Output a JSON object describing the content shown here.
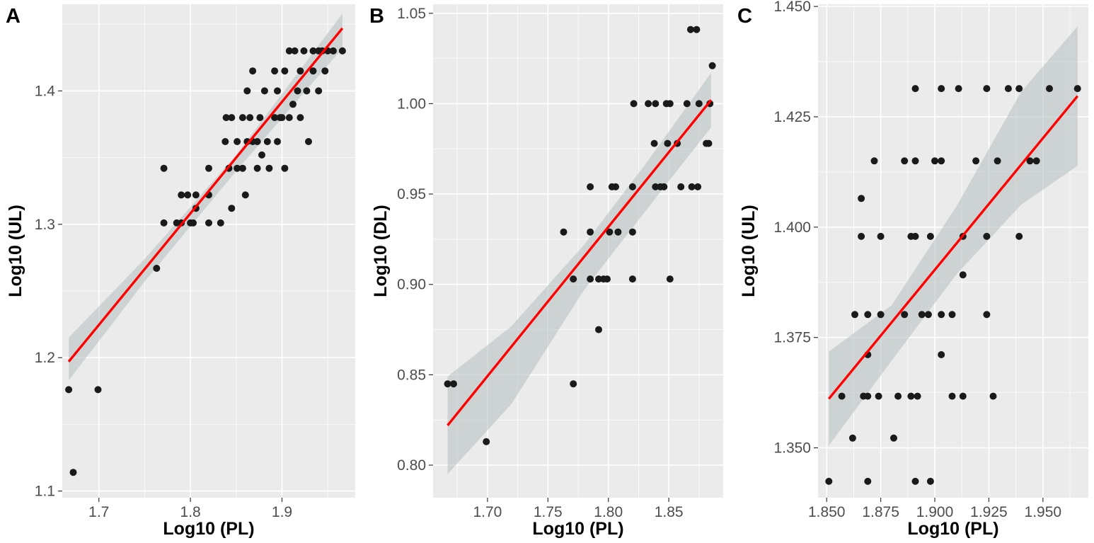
{
  "colors": {
    "panel_background": "#ebebeb",
    "gridline": "#ffffff",
    "points": "#1a1a1a",
    "fit_line": "#ff0000",
    "confidence_band": "#b5bdbd"
  },
  "chart_data": [
    {
      "panel_label": "A",
      "type": "scatter",
      "xlabel": "Log10 (PL)",
      "ylabel": "Log10 (UL)",
      "xlim": [
        1.66,
        1.98
      ],
      "ylim": [
        1.095,
        1.465
      ],
      "xticks": [
        "1.7",
        "1.8",
        "1.9"
      ],
      "yticks": [
        "1.1",
        "1.2",
        "1.3",
        "1.4"
      ],
      "grid": true,
      "fit": {
        "x": [
          1.667,
          1.966
        ],
        "y": [
          1.197,
          1.447
        ]
      },
      "band": {
        "x": [
          1.667,
          1.75,
          1.85,
          1.966
        ],
        "upper": [
          1.215,
          1.274,
          1.352,
          1.458
        ],
        "lower": [
          1.183,
          1.257,
          1.34,
          1.432
        ]
      },
      "points": [
        [
          1.667,
          1.176
        ],
        [
          1.672,
          1.114
        ],
        [
          1.699,
          1.176
        ],
        [
          1.763,
          1.267
        ],
        [
          1.771,
          1.301
        ],
        [
          1.771,
          1.342
        ],
        [
          1.785,
          1.301
        ],
        [
          1.79,
          1.322
        ],
        [
          1.79,
          1.301
        ],
        [
          1.797,
          1.322
        ],
        [
          1.8,
          1.301
        ],
        [
          1.803,
          1.301
        ],
        [
          1.806,
          1.312
        ],
        [
          1.806,
          1.322
        ],
        [
          1.82,
          1.342
        ],
        [
          1.82,
          1.301
        ],
        [
          1.82,
          1.322
        ],
        [
          1.833,
          1.301
        ],
        [
          1.839,
          1.38
        ],
        [
          1.842,
          1.342
        ],
        [
          1.845,
          1.312
        ],
        [
          1.851,
          1.342
        ],
        [
          1.851,
          1.362
        ],
        [
          1.857,
          1.342
        ],
        [
          1.857,
          1.38
        ],
        [
          1.86,
          1.322
        ],
        [
          1.862,
          1.362
        ],
        [
          1.865,
          1.38
        ],
        [
          1.868,
          1.415
        ],
        [
          1.868,
          1.362
        ],
        [
          1.873,
          1.342
        ],
        [
          1.873,
          1.362
        ],
        [
          1.876,
          1.38
        ],
        [
          1.881,
          1.4
        ],
        [
          1.884,
          1.362
        ],
        [
          1.886,
          1.342
        ],
        [
          1.892,
          1.415
        ],
        [
          1.892,
          1.38
        ],
        [
          1.895,
          1.362
        ],
        [
          1.895,
          1.4
        ],
        [
          1.9,
          1.38
        ],
        [
          1.903,
          1.415
        ],
        [
          1.903,
          1.342
        ],
        [
          1.908,
          1.43
        ],
        [
          1.908,
          1.38
        ],
        [
          1.912,
          1.39
        ],
        [
          1.914,
          1.43
        ],
        [
          1.92,
          1.415
        ],
        [
          1.92,
          1.38
        ],
        [
          1.924,
          1.43
        ],
        [
          1.927,
          1.4
        ],
        [
          1.929,
          1.362
        ],
        [
          1.934,
          1.43
        ],
        [
          1.934,
          1.415
        ],
        [
          1.94,
          1.43
        ],
        [
          1.94,
          1.4
        ],
        [
          1.944,
          1.43
        ],
        [
          1.947,
          1.415
        ],
        [
          1.95,
          1.43
        ],
        [
          1.956,
          1.43
        ],
        [
          1.966,
          1.43
        ],
        [
          1.838,
          1.362
        ],
        [
          1.845,
          1.38
        ],
        [
          1.862,
          1.4
        ],
        [
          1.878,
          1.352
        ],
        [
          1.898,
          1.38
        ],
        [
          1.917,
          1.4
        ]
      ]
    },
    {
      "panel_label": "B",
      "type": "scatter",
      "xlabel": "Log10 (PL)",
      "ylabel": "Log10 (DL)",
      "xlim": [
        1.655,
        1.895
      ],
      "ylim": [
        0.782,
        1.055
      ],
      "xticks": [
        "1.70",
        "1.75",
        "1.80",
        "1.85"
      ],
      "yticks": [
        "0.80",
        "0.85",
        "0.90",
        "0.95",
        "1.00",
        "1.05"
      ],
      "grid": true,
      "fit": {
        "x": [
          1.667,
          1.885
        ],
        "y": [
          0.822,
          1.002
        ]
      },
      "band": {
        "x": [
          1.667,
          1.72,
          1.78,
          1.83,
          1.885
        ],
        "upper": [
          0.849,
          0.877,
          0.922,
          0.966,
          1.017
        ],
        "lower": [
          0.795,
          0.834,
          0.897,
          0.94,
          0.987
        ]
      },
      "points": [
        [
          1.667,
          0.845
        ],
        [
          1.672,
          0.845
        ],
        [
          1.699,
          0.813
        ],
        [
          1.763,
          0.929
        ],
        [
          1.771,
          0.845
        ],
        [
          1.771,
          0.903
        ],
        [
          1.785,
          0.954
        ],
        [
          1.785,
          0.929
        ],
        [
          1.785,
          0.903
        ],
        [
          1.792,
          0.875
        ],
        [
          1.792,
          0.903
        ],
        [
          1.796,
          0.903
        ],
        [
          1.799,
          0.903
        ],
        [
          1.801,
          0.929
        ],
        [
          1.803,
          0.954
        ],
        [
          1.806,
          0.954
        ],
        [
          1.808,
          0.929
        ],
        [
          1.82,
          0.954
        ],
        [
          1.82,
          0.929
        ],
        [
          1.82,
          0.903
        ],
        [
          1.821,
          1.0
        ],
        [
          1.833,
          1.0
        ],
        [
          1.838,
          0.978
        ],
        [
          1.839,
          0.954
        ],
        [
          1.839,
          1.0
        ],
        [
          1.843,
          0.954
        ],
        [
          1.846,
          0.954
        ],
        [
          1.848,
          1.0
        ],
        [
          1.849,
          0.978
        ],
        [
          1.851,
          0.903
        ],
        [
          1.851,
          1.0
        ],
        [
          1.857,
          0.978
        ],
        [
          1.86,
          0.954
        ],
        [
          1.865,
          1.0
        ],
        [
          1.868,
          1.041
        ],
        [
          1.869,
          0.954
        ],
        [
          1.873,
          1.041
        ],
        [
          1.874,
          0.954
        ],
        [
          1.875,
          1.0
        ],
        [
          1.881,
          0.978
        ],
        [
          1.883,
          0.978
        ],
        [
          1.884,
          1.0
        ],
        [
          1.886,
          1.021
        ]
      ]
    },
    {
      "panel_label": "C",
      "type": "scatter",
      "xlabel": "Log10 (PL)",
      "ylabel": "Log10 (UL)",
      "xlim": [
        1.846,
        1.971
      ],
      "ylim": [
        1.3387,
        1.4505
      ],
      "xticks": [
        "1.850",
        "1.875",
        "1.900",
        "1.925",
        "1.950"
      ],
      "yticks": [
        "1.350",
        "1.375",
        "1.400",
        "1.425",
        "1.450"
      ],
      "grid": true,
      "fit": {
        "x": [
          1.851,
          1.966
        ],
        "y": [
          1.3611,
          1.4297
        ]
      },
      "band": {
        "x": [
          1.851,
          1.88,
          1.91,
          1.94,
          1.966
        ],
        "upper": [
          1.3718,
          1.3823,
          1.4047,
          1.4307,
          1.4455
        ],
        "lower": [
          1.3505,
          1.3697,
          1.3893,
          1.4051,
          1.4139
        ]
      },
      "points": [
        [
          1.851,
          1.3424
        ],
        [
          1.857,
          1.3617
        ],
        [
          1.862,
          1.3522
        ],
        [
          1.863,
          1.3802
        ],
        [
          1.866,
          1.4065
        ],
        [
          1.866,
          1.3979
        ],
        [
          1.867,
          1.3617
        ],
        [
          1.869,
          1.3424
        ],
        [
          1.869,
          1.3711
        ],
        [
          1.869,
          1.3802
        ],
        [
          1.869,
          1.3617
        ],
        [
          1.872,
          1.415
        ],
        [
          1.874,
          1.3617
        ],
        [
          1.875,
          1.3979
        ],
        [
          1.875,
          1.3802
        ],
        [
          1.881,
          1.3522
        ],
        [
          1.883,
          1.3617
        ],
        [
          1.886,
          1.415
        ],
        [
          1.886,
          1.3802
        ],
        [
          1.889,
          1.3979
        ],
        [
          1.889,
          1.3617
        ],
        [
          1.891,
          1.3979
        ],
        [
          1.891,
          1.4314
        ],
        [
          1.891,
          1.415
        ],
        [
          1.891,
          1.3424
        ],
        [
          1.892,
          1.3617
        ],
        [
          1.894,
          1.3802
        ],
        [
          1.897,
          1.3802
        ],
        [
          1.898,
          1.3979
        ],
        [
          1.898,
          1.3424
        ],
        [
          1.9,
          1.415
        ],
        [
          1.903,
          1.4314
        ],
        [
          1.903,
          1.3802
        ],
        [
          1.903,
          1.3711
        ],
        [
          1.903,
          1.415
        ],
        [
          1.908,
          1.3802
        ],
        [
          1.908,
          1.3617
        ],
        [
          1.911,
          1.4314
        ],
        [
          1.913,
          1.3617
        ],
        [
          1.913,
          1.3892
        ],
        [
          1.913,
          1.3979
        ],
        [
          1.919,
          1.415
        ],
        [
          1.924,
          1.4314
        ],
        [
          1.924,
          1.3979
        ],
        [
          1.924,
          1.3802
        ],
        [
          1.927,
          1.3617
        ],
        [
          1.929,
          1.415
        ],
        [
          1.934,
          1.4314
        ],
        [
          1.939,
          1.4314
        ],
        [
          1.939,
          1.3979
        ],
        [
          1.944,
          1.415
        ],
        [
          1.947,
          1.415
        ],
        [
          1.953,
          1.4314
        ],
        [
          1.966,
          1.4314
        ]
      ]
    }
  ]
}
